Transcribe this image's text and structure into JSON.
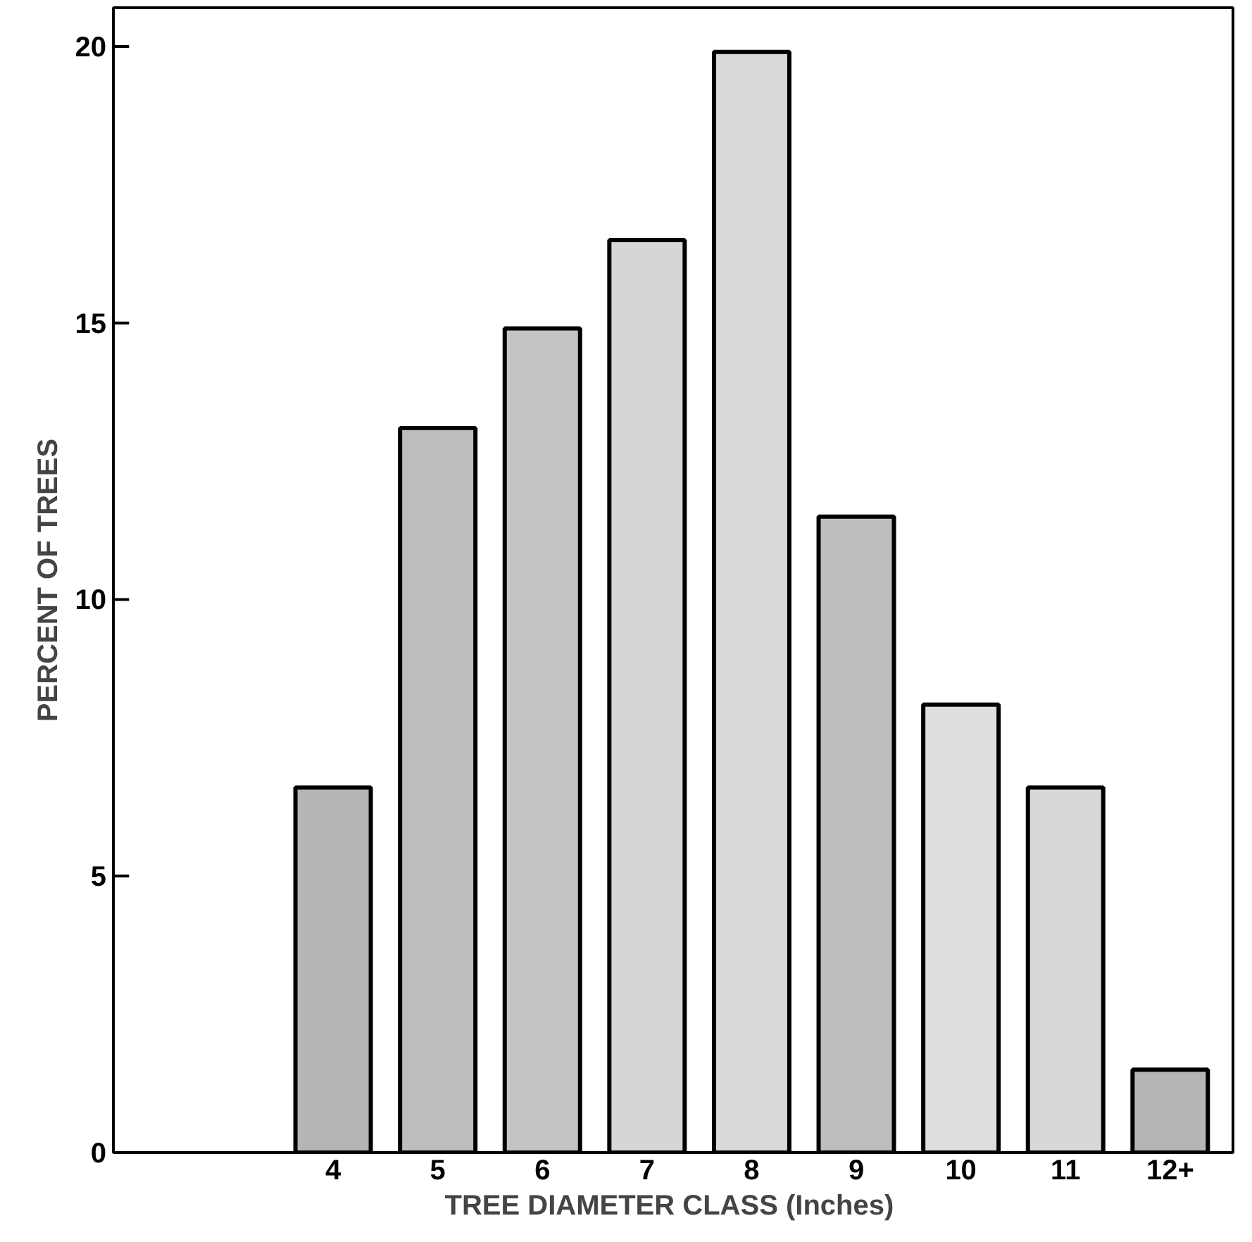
{
  "chart_data": {
    "type": "bar",
    "xlabel": "TREE DIAMETER CLASS  (Inches)",
    "ylabel": "PERCENT OF TREES",
    "categories": [
      "4",
      "5",
      "6",
      "7",
      "8",
      "9",
      "10",
      "11",
      "12+"
    ],
    "values": [
      6.6,
      13.1,
      14.9,
      16.5,
      19.9,
      11.5,
      8.1,
      6.6,
      1.5
    ],
    "colors": [
      "#b5b5b5",
      "#bdbdbd",
      "#c4c4c4",
      "#d6d6d6",
      "#d9d9d9",
      "#bdbdbd",
      "#dedede",
      "#d8d8d8",
      "#b5b5b5"
    ],
    "ylim": [
      0,
      20.7
    ],
    "yticks": [
      0,
      5,
      10,
      15,
      20
    ],
    "grid": false
  }
}
